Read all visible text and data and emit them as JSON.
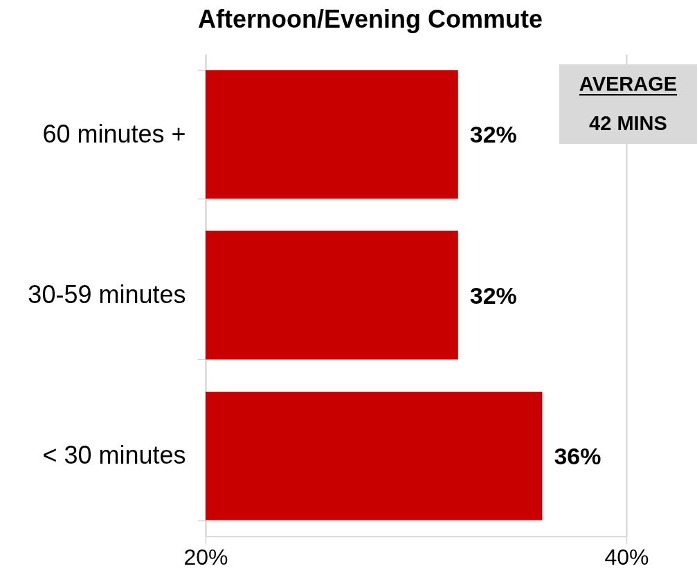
{
  "chart_data": {
    "type": "bar",
    "title": "Afternoon/Evening Commute",
    "orientation": "horizontal",
    "categories": [
      "60 minutes +",
      "30-59 minutes",
      "< 30 minutes"
    ],
    "values": [
      32,
      32,
      36
    ],
    "value_labels": [
      "32%",
      "32%",
      "36%"
    ],
    "color": "#c80000",
    "xlim": [
      20,
      40
    ],
    "xticks": [
      {
        "value": 20,
        "label": "20%"
      },
      {
        "value": 40,
        "label": "40%"
      }
    ],
    "grid": "x",
    "annotations": [
      "AVERAGE",
      "42 MINS"
    ]
  }
}
